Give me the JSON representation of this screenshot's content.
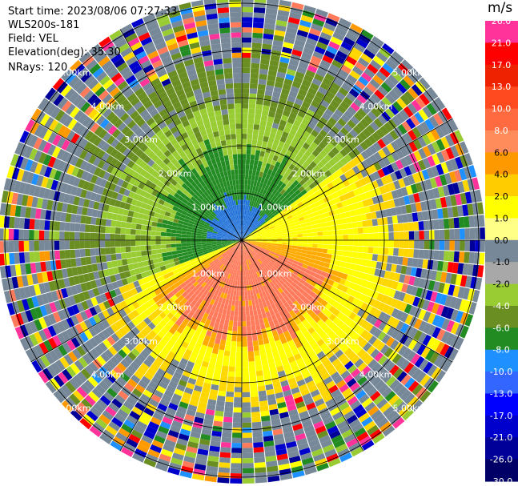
{
  "info": {
    "start_time": "Start time: 2023/08/06 07:27:33",
    "device": "WLS200s-181",
    "field": "Field: VEL",
    "elevation": "Elevation(deg): 35.30",
    "nrays": "NRays: 120"
  },
  "colorbar": {
    "unit": "m/s",
    "labels": [
      "26.0",
      "21.0",
      "17.0",
      "13.0",
      "10.0",
      "8.0",
      "6.0",
      "4.0",
      "2.0",
      "1.0",
      "0.0",
      "-1.0",
      "-2.0",
      "-4.0",
      "-6.0",
      "-8.0",
      "-10.0",
      "-13.0",
      "-17.0",
      "-21.0",
      "-26.0",
      "-30.0"
    ],
    "colors": [
      "#ff3399",
      "#ff0000",
      "#ee2200",
      "#ff4a20",
      "#ff6a40",
      "#ff8c5a",
      "#ff9900",
      "#ffcc00",
      "#ffff00",
      "#ffff88",
      "#778899",
      "#a8a8a8",
      "#99cc33",
      "#6b8e23",
      "#228b22",
      "#1e90ff",
      "#3366ff",
      "#0000ff",
      "#0000cc",
      "#000099",
      "#000066"
    ]
  },
  "ppi": {
    "ring_labels": [
      "1.00km",
      "2.00km",
      "3.00km",
      "4.00km",
      "5.00km"
    ],
    "colors": {
      "blue": "#1e70d8",
      "dark_green": "#228b22",
      "olive": "#6b8e23",
      "yellow_green": "#99cc33",
      "yellow": "#ffff00",
      "gold": "#ffd700",
      "orange": "#ffaa00",
      "salmon": "#ff7a5a",
      "gray": "#778899"
    }
  }
}
